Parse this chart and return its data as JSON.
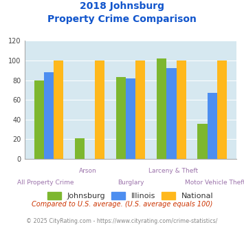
{
  "title_line1": "2018 Johnsburg",
  "title_line2": "Property Crime Comparison",
  "categories": [
    "All Property Crime",
    "Arson",
    "Burglary",
    "Larceny & Theft",
    "Motor Vehicle Theft"
  ],
  "johnsburg": [
    80,
    21,
    83,
    102,
    36
  ],
  "illinois": [
    88,
    0,
    82,
    92,
    67
  ],
  "national": [
    100,
    100,
    100,
    100,
    100
  ],
  "color_johnsburg": "#7db72f",
  "color_illinois": "#4d8ef0",
  "color_national": "#ffb81c",
  "bg_color": "#d6e8f0",
  "ylim": [
    0,
    120
  ],
  "yticks": [
    0,
    20,
    40,
    60,
    80,
    100,
    120
  ],
  "xlabel_color": "#9b72aa",
  "title_color": "#1155cc",
  "footnote1": "Compared to U.S. average. (U.S. average equals 100)",
  "footnote2": "© 2025 CityRating.com - https://www.cityrating.com/crime-statistics/",
  "footnote1_color": "#cc3300",
  "footnote2_color": "#888888",
  "legend_labels": [
    "Johnsburg",
    "Illinois",
    "National"
  ]
}
